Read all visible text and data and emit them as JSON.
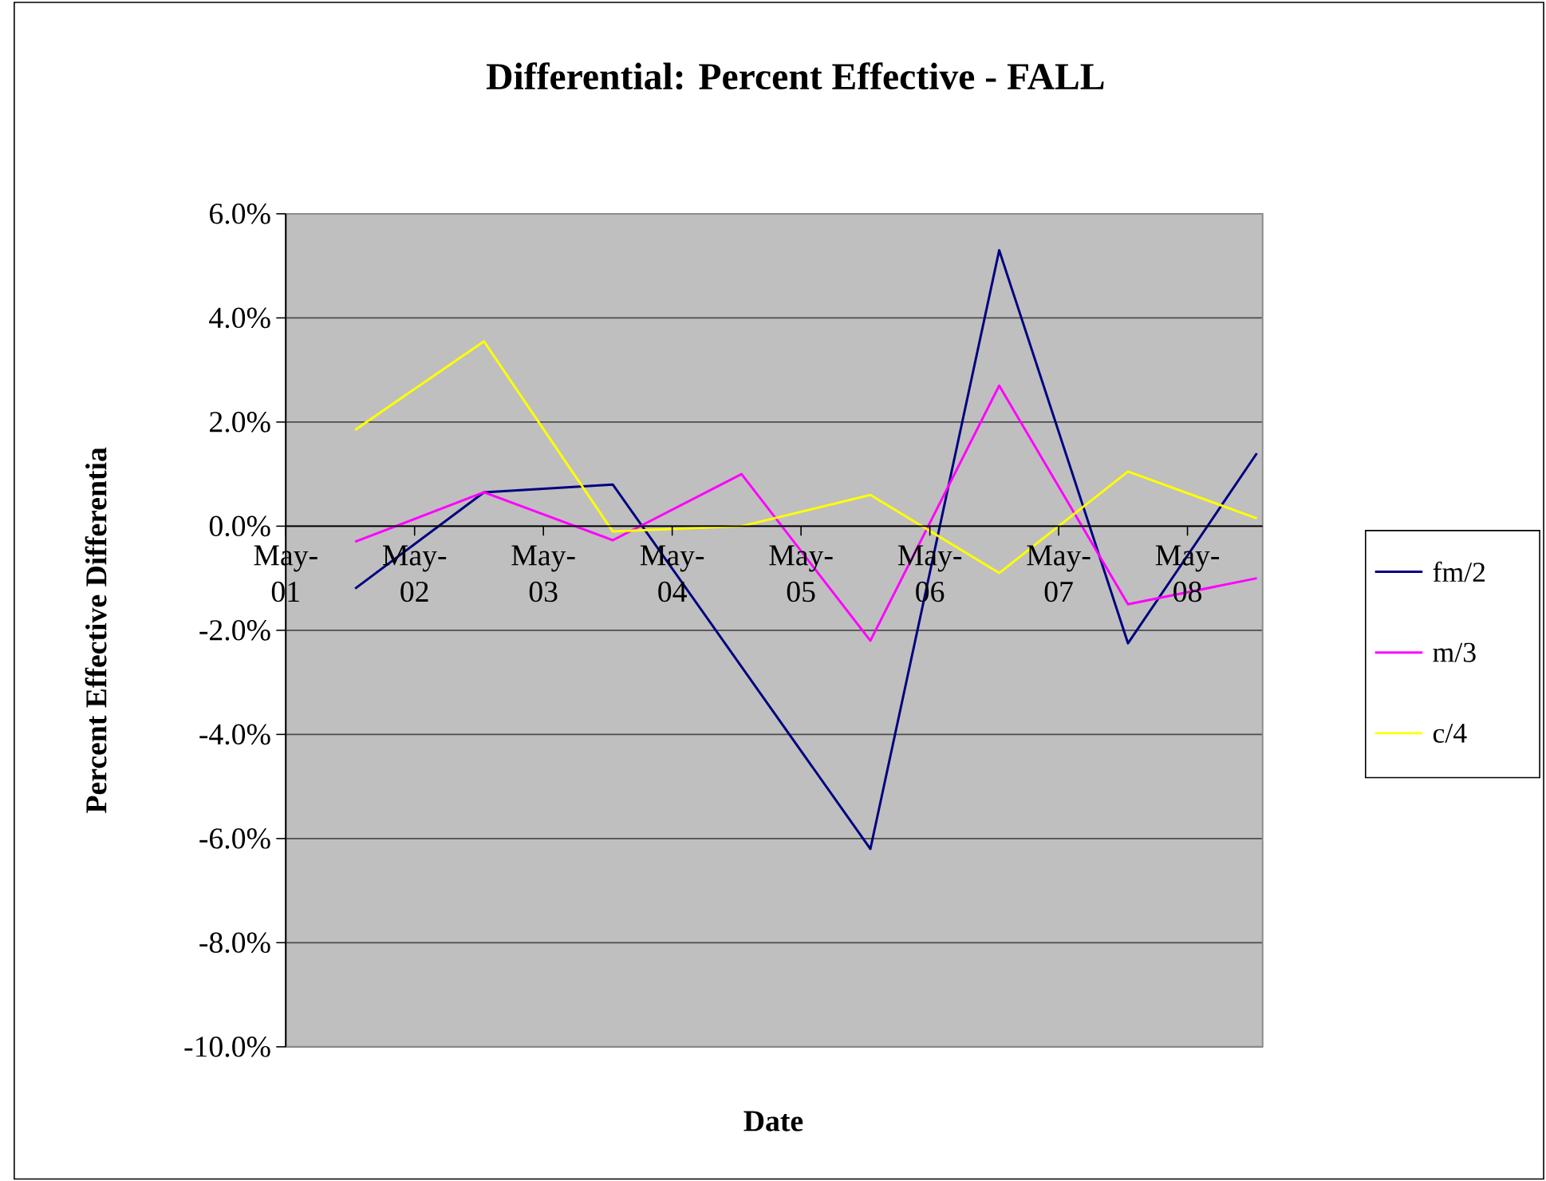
{
  "chart_data": {
    "type": "line",
    "title": "Differential: Percent Effective - FALL",
    "xlabel": "Date",
    "ylabel": "Percent Effective Differentia",
    "x": [
      "2001-11-15",
      "2002-11-15",
      "2003-11-15",
      "2004-11-15",
      "2005-11-15",
      "2006-11-15",
      "2007-11-15",
      "2008-11-15"
    ],
    "xlim": [
      "2001-05",
      "2008-12"
    ],
    "xticks": [
      {
        "value": "2001-05",
        "label": "May-01"
      },
      {
        "value": "2002-05",
        "label": "May-02"
      },
      {
        "value": "2003-05",
        "label": "May-03"
      },
      {
        "value": "2004-05",
        "label": "May-04"
      },
      {
        "value": "2005-05",
        "label": "May-05"
      },
      {
        "value": "2006-05",
        "label": "May-06"
      },
      {
        "value": "2007-05",
        "label": "May-07"
      },
      {
        "value": "2008-05",
        "label": "May-08"
      }
    ],
    "ylim": [
      -10,
      6
    ],
    "yticks": [
      {
        "value": -10,
        "label": "-10.0%"
      },
      {
        "value": -8,
        "label": "-8.0%"
      },
      {
        "value": -6,
        "label": "-6.0%"
      },
      {
        "value": -4,
        "label": "-4.0%"
      },
      {
        "value": -2,
        "label": "-2.0%"
      },
      {
        "value": 0,
        "label": "0.0%"
      },
      {
        "value": 2,
        "label": "2.0%"
      },
      {
        "value": 4,
        "label": "4.0%"
      },
      {
        "value": 6,
        "label": "6.0%"
      }
    ],
    "series": [
      {
        "name": "fm/2",
        "color": "#000080",
        "values": [
          -1.2,
          0.65,
          0.8,
          -2.7,
          -6.2,
          5.3,
          -2.25,
          1.4
        ]
      },
      {
        "name": "m/3",
        "color": "#ff00ff",
        "values": [
          -0.3,
          0.65,
          -0.27,
          1.0,
          -2.2,
          2.7,
          -1.5,
          -1.0
        ]
      },
      {
        "name": "c/4",
        "color": "#ffff00",
        "values": [
          1.85,
          3.55,
          -0.1,
          0.0,
          0.6,
          -0.9,
          1.05,
          0.15
        ]
      }
    ],
    "grid": "y",
    "legend": "right",
    "marker": "none",
    "line_style": "solid"
  }
}
